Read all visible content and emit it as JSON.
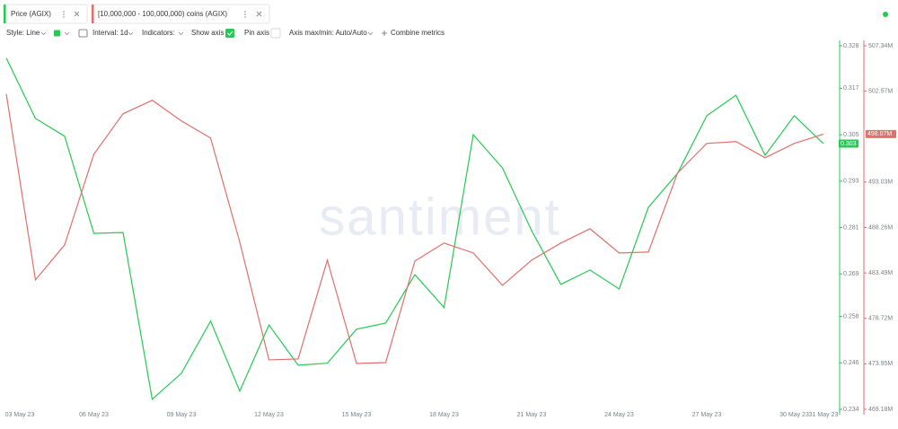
{
  "tabs": [
    "Price (AGIX)",
    "[10,000,000 - 100,000,000) coins (AGIX)"
  ],
  "toolbar": {
    "style": "Style: Line",
    "interval": "Interval: 1d",
    "indicators": "Indicators:",
    "show_axis": "Show axis",
    "pin_axis": "Pin axis",
    "axis_max_min": "Axis max/min: Auto/Auto",
    "combine": "Combine metrics"
  },
  "watermark": "santiment",
  "chart_data": {
    "type": "line",
    "categories": [
      "03 May 23",
      null,
      null,
      "06 May 23",
      null,
      null,
      "09 May 23",
      null,
      null,
      "12 May 23",
      null,
      null,
      "15 May 23",
      null,
      null,
      "18 May 23",
      null,
      null,
      "21 May 23",
      null,
      null,
      "24 May 23",
      null,
      null,
      "27 May 23",
      null,
      null,
      "30 May 23",
      "31 May 23"
    ],
    "series": [
      {
        "name": "Price (AGIX)",
        "color": "#26c953",
        "axis": "y",
        "last_label": "0.303",
        "values": [
          0.3248,
          0.3092,
          0.3046,
          0.2795,
          0.2797,
          0.2366,
          0.2433,
          0.2568,
          0.2387,
          0.2558,
          0.2454,
          0.2459,
          0.2547,
          0.2563,
          0.2688,
          0.2603,
          0.305,
          0.2964,
          0.2802,
          0.2663,
          0.27,
          0.2651,
          0.2862,
          0.295,
          0.3099,
          0.3152,
          0.2997,
          0.3099,
          0.3027
        ]
      },
      {
        "name": "[10,000,000 - 100,000,000) coins (AGIX)",
        "color": "#e0706b",
        "axis": "y2",
        "last_label": "498.07M",
        "values": [
          502280000,
          482760000,
          486440000,
          495960000,
          500200000,
          501620000,
          499450000,
          497660000,
          486720000,
          474370000,
          474460000,
          484830000,
          473990000,
          474080000,
          484740000,
          486630000,
          485590000,
          482190000,
          484830000,
          486630000,
          488130000,
          485590000,
          485680000,
          493980000,
          497090000,
          497280000,
          495580000,
          497090000,
          498070000
        ]
      }
    ],
    "ylim": [
      0.234,
      0.328
    ],
    "yticks": [
      0.328,
      0.317,
      0.305,
      0.293,
      0.281,
      0.269,
      0.258,
      0.246,
      0.234
    ],
    "y2lim": [
      469180000,
      507340000
    ],
    "y2ticks": [
      {
        "value": 507340000,
        "label": "507.34M"
      },
      {
        "value": 502570000,
        "label": "502.57M"
      },
      {
        "value": 493030000,
        "label": "493.03M"
      },
      {
        "value": 488260000,
        "label": "488.26M"
      },
      {
        "value": 483490000,
        "label": "483.49M"
      },
      {
        "value": 478720000,
        "label": "478.72M"
      },
      {
        "value": 473950000,
        "label": "473.95M"
      },
      {
        "value": 469180000,
        "label": "469.18M"
      }
    ],
    "grid": false
  }
}
